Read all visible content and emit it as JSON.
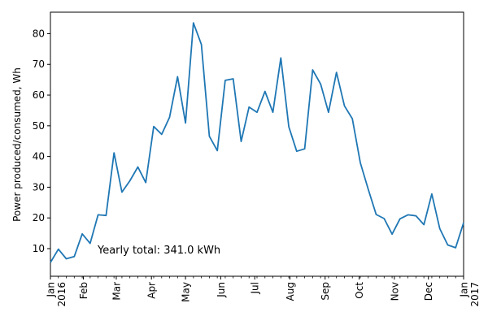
{
  "chart_data": {
    "type": "line",
    "title": "",
    "xlabel": "",
    "ylabel": "Power produced/consumed, Wh",
    "ylim": [
      1,
      87
    ],
    "xlim": [
      "2016-01-03",
      "2017-01-01"
    ],
    "yticks": [
      10,
      20,
      30,
      40,
      50,
      60,
      70,
      80
    ],
    "xticks": [
      {
        "date": "2016-01-03",
        "label": "Jan",
        "sublabel": "2016"
      },
      {
        "date": "2016-02-01",
        "label": "Feb",
        "sublabel": ""
      },
      {
        "date": "2016-03-01",
        "label": "Mar",
        "sublabel": ""
      },
      {
        "date": "2016-04-01",
        "label": "Apr",
        "sublabel": ""
      },
      {
        "date": "2016-05-01",
        "label": "May",
        "sublabel": ""
      },
      {
        "date": "2016-06-01",
        "label": "Jun",
        "sublabel": ""
      },
      {
        "date": "2016-07-01",
        "label": "Jul",
        "sublabel": ""
      },
      {
        "date": "2016-08-01",
        "label": "Aug",
        "sublabel": ""
      },
      {
        "date": "2016-09-01",
        "label": "Sep",
        "sublabel": ""
      },
      {
        "date": "2016-10-01",
        "label": "Oct",
        "sublabel": ""
      },
      {
        "date": "2016-11-01",
        "label": "Nov",
        "sublabel": ""
      },
      {
        "date": "2016-12-01",
        "label": "Dec",
        "sublabel": ""
      },
      {
        "date": "2017-01-01",
        "label": "Jan",
        "sublabel": "2017"
      }
    ],
    "grid": false,
    "legend": "none",
    "line_color": "#1f77b4",
    "annotation": "Yearly total: 341.0 kWh",
    "series": [
      {
        "x": [
          "2016-01-03",
          "2016-01-10",
          "2016-01-17",
          "2016-01-24",
          "2016-01-31",
          "2016-02-07",
          "2016-02-14",
          "2016-02-21",
          "2016-02-28",
          "2016-03-06",
          "2016-03-13",
          "2016-03-20",
          "2016-03-27",
          "2016-04-03",
          "2016-04-10",
          "2016-04-17",
          "2016-04-24",
          "2016-05-01",
          "2016-05-08",
          "2016-05-15",
          "2016-05-22",
          "2016-05-29",
          "2016-06-05",
          "2016-06-12",
          "2016-06-19",
          "2016-06-26",
          "2016-07-03",
          "2016-07-10",
          "2016-07-17",
          "2016-07-24",
          "2016-07-31",
          "2016-08-07",
          "2016-08-14",
          "2016-08-21",
          "2016-08-28",
          "2016-09-04",
          "2016-09-11",
          "2016-09-18",
          "2016-09-25",
          "2016-10-02",
          "2016-10-09",
          "2016-10-16",
          "2016-10-23",
          "2016-10-30",
          "2016-11-06",
          "2016-11-13",
          "2016-11-20",
          "2016-11-27",
          "2016-12-04",
          "2016-12-11",
          "2016-12-18",
          "2016-12-25",
          "2017-01-01"
        ],
        "values": [
          5.5,
          9.8,
          6.7,
          7.4,
          14.8,
          11.7,
          21.0,
          20.8,
          41.2,
          28.4,
          32.1,
          36.6,
          31.5,
          49.8,
          47.2,
          52.8,
          66.0,
          50.9,
          83.5,
          76.5,
          46.6,
          41.9,
          64.8,
          65.3,
          44.9,
          56.1,
          54.4,
          61.2,
          54.4,
          72.1,
          49.7,
          41.7,
          42.5,
          68.2,
          63.6,
          54.4,
          67.4,
          56.5,
          52.3,
          38.0,
          29.3,
          21.1,
          19.8,
          14.7,
          19.7,
          21.0,
          20.7,
          17.8,
          27.8,
          16.5,
          11.2,
          10.3,
          18.4
        ]
      }
    ]
  }
}
